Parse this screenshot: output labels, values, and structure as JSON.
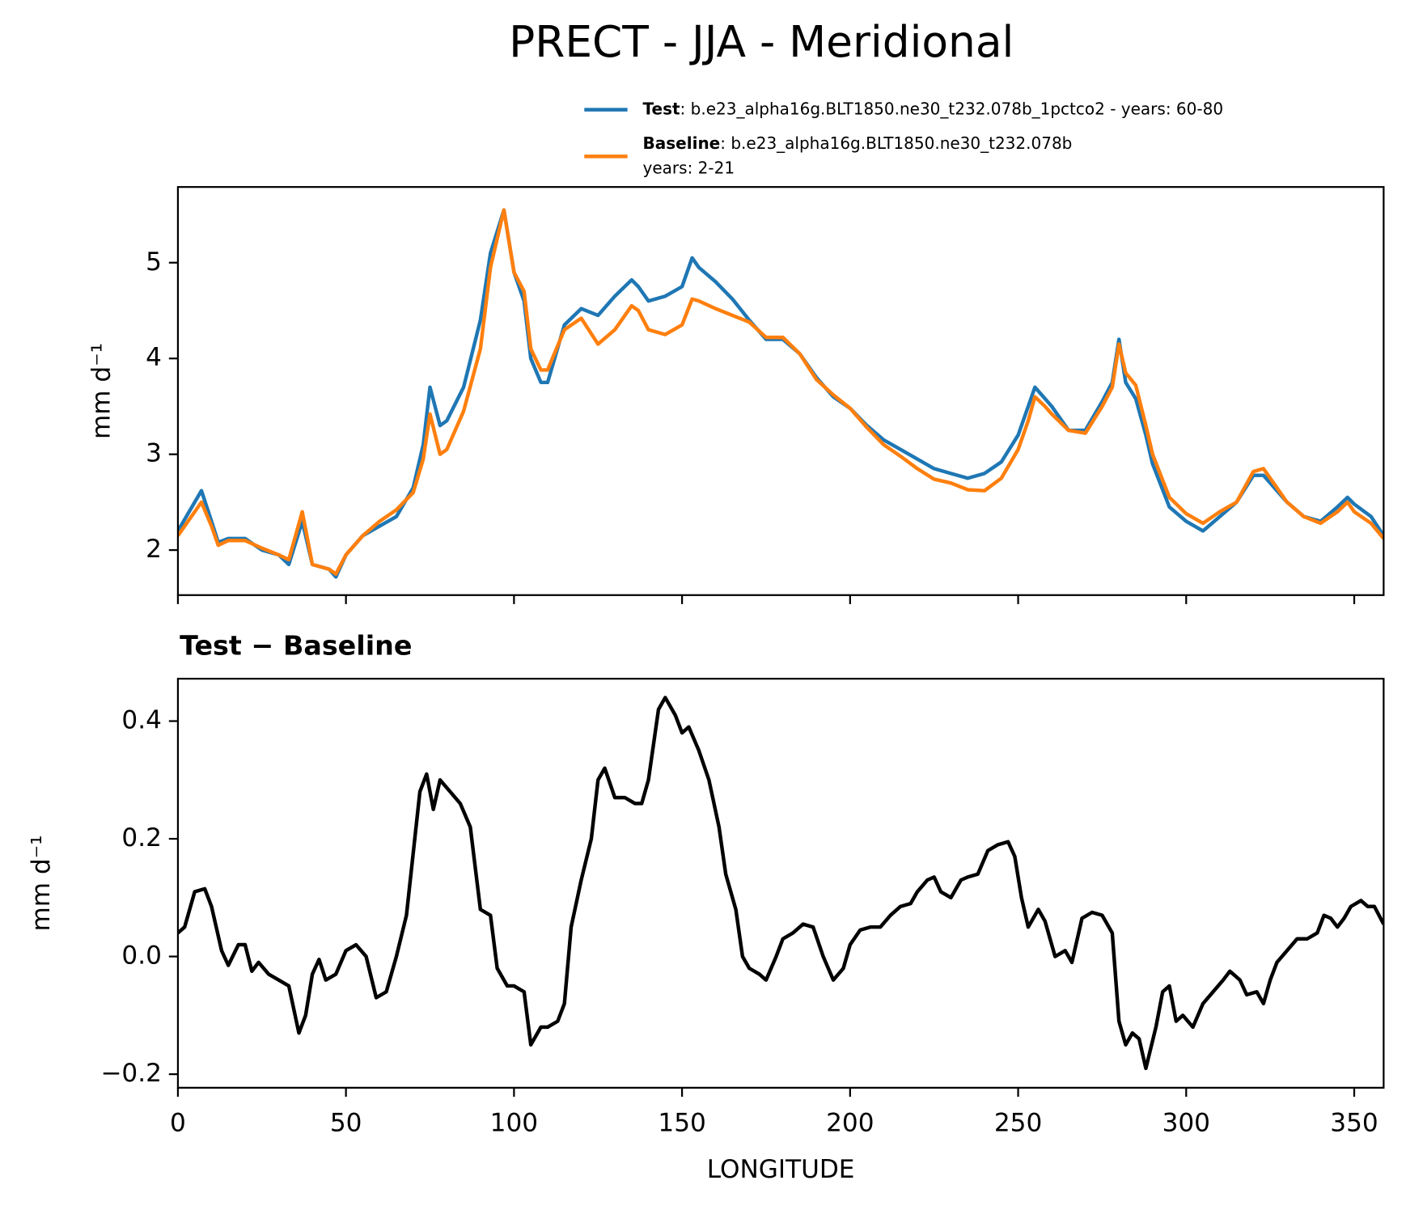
{
  "chart_data": [
    {
      "type": "line",
      "title": "PRECT - JJA - Meridional",
      "ylabel": "mm d⁻¹",
      "x": [
        0,
        5,
        7,
        10,
        12,
        15,
        20,
        25,
        30,
        33,
        37,
        40,
        45,
        47,
        50,
        55,
        60,
        65,
        70,
        73,
        75,
        78,
        80,
        85,
        90,
        93,
        97,
        100,
        103,
        105,
        108,
        110,
        115,
        120,
        125,
        130,
        135,
        137,
        140,
        145,
        150,
        153,
        155,
        160,
        165,
        170,
        175,
        180,
        185,
        190,
        195,
        200,
        205,
        210,
        215,
        220,
        225,
        230,
        235,
        240,
        245,
        250,
        253,
        255,
        258,
        260,
        265,
        270,
        275,
        278,
        280,
        282,
        285,
        288,
        290,
        295,
        300,
        305,
        310,
        315,
        320,
        323,
        325,
        330,
        335,
        340,
        345,
        348,
        350,
        355,
        358.75
      ],
      "series": [
        {
          "name": "Test",
          "description": [
            ": b.e23_alpha16g.BLT1850.ne30_t232.078b_1pctco2 - years: 60-80"
          ],
          "color": "#1f77b4",
          "values": [
            2.2,
            2.5,
            2.62,
            2.3,
            2.08,
            2.12,
            2.12,
            2.0,
            1.95,
            1.85,
            2.3,
            1.85,
            1.8,
            1.72,
            1.95,
            2.15,
            2.25,
            2.35,
            2.65,
            3.1,
            3.7,
            3.3,
            3.35,
            3.7,
            4.4,
            5.1,
            5.55,
            4.9,
            4.6,
            4.0,
            3.75,
            3.75,
            4.35,
            4.52,
            4.45,
            4.65,
            4.82,
            4.75,
            4.6,
            4.65,
            4.75,
            5.05,
            4.95,
            4.8,
            4.62,
            4.4,
            4.2,
            4.2,
            4.05,
            3.8,
            3.6,
            3.48,
            3.3,
            3.15,
            3.05,
            2.95,
            2.85,
            2.8,
            2.75,
            2.8,
            2.92,
            3.2,
            3.5,
            3.7,
            3.58,
            3.5,
            3.25,
            3.25,
            3.55,
            3.75,
            4.2,
            3.75,
            3.58,
            3.2,
            2.9,
            2.45,
            2.3,
            2.2,
            2.35,
            2.5,
            2.78,
            2.78,
            2.7,
            2.5,
            2.35,
            2.3,
            2.45,
            2.55,
            2.48,
            2.35,
            2.15
          ]
        },
        {
          "name": "Baseline",
          "description": [
            ": b.e23_alpha16g.BLT1850.ne30_t232.078b",
            "years: 2-21"
          ],
          "color": "#ff7f0e",
          "values": [
            2.15,
            2.4,
            2.5,
            2.25,
            2.05,
            2.1,
            2.1,
            2.02,
            1.95,
            1.9,
            2.4,
            1.85,
            1.8,
            1.75,
            1.95,
            2.15,
            2.3,
            2.42,
            2.6,
            2.95,
            3.42,
            3.0,
            3.05,
            3.45,
            4.1,
            4.95,
            5.55,
            4.9,
            4.7,
            4.1,
            3.88,
            3.88,
            4.3,
            4.42,
            4.15,
            4.3,
            4.55,
            4.5,
            4.3,
            4.25,
            4.35,
            4.62,
            4.6,
            4.52,
            4.45,
            4.38,
            4.22,
            4.22,
            4.05,
            3.78,
            3.62,
            3.48,
            3.28,
            3.1,
            2.98,
            2.85,
            2.74,
            2.7,
            2.63,
            2.62,
            2.75,
            3.05,
            3.35,
            3.6,
            3.5,
            3.42,
            3.25,
            3.22,
            3.5,
            3.7,
            4.15,
            3.85,
            3.72,
            3.3,
            3.0,
            2.55,
            2.38,
            2.28,
            2.4,
            2.5,
            2.82,
            2.85,
            2.75,
            2.5,
            2.35,
            2.28,
            2.4,
            2.5,
            2.4,
            2.28,
            2.12
          ]
        }
      ],
      "xlim": [
        0,
        358.75
      ],
      "xticks": [
        0,
        50,
        100,
        150,
        200,
        250,
        300,
        350
      ],
      "ylim": [
        1.53,
        5.79
      ],
      "yticks": [
        2,
        3,
        4,
        5
      ]
    },
    {
      "type": "line",
      "title": "Test − Baseline",
      "xlabel": "LONGITUDE",
      "ylabel": "mm d⁻¹",
      "x": [
        0,
        2,
        5,
        8,
        10,
        13,
        15,
        18,
        20,
        22,
        24,
        27,
        30,
        33,
        36,
        38,
        40,
        42,
        44,
        47,
        50,
        53,
        56,
        59,
        62,
        65,
        68,
        72,
        74,
        76,
        78,
        81,
        84,
        87,
        90,
        93,
        95,
        98,
        100,
        103,
        105,
        108,
        110,
        113,
        115,
        117,
        120,
        123,
        125,
        127,
        130,
        133,
        136,
        138,
        140,
        143,
        145,
        148,
        150,
        152,
        155,
        158,
        161,
        163,
        166,
        168,
        170,
        173,
        175,
        178,
        180,
        183,
        186,
        189,
        192,
        195,
        198,
        200,
        203,
        206,
        209,
        212,
        215,
        218,
        220,
        223,
        225,
        227,
        230,
        233,
        235,
        238,
        241,
        244,
        247,
        249,
        251,
        253,
        256,
        258,
        261,
        264,
        266,
        269,
        272,
        275,
        278,
        280,
        282,
        284,
        286,
        288,
        291,
        293,
        295,
        297,
        299,
        302,
        305,
        308,
        311,
        313,
        316,
        318,
        321,
        323,
        325,
        327,
        330,
        333,
        336,
        339,
        341,
        343,
        345,
        347,
        349,
        352,
        354,
        356,
        358.75
      ],
      "series": [
        {
          "color": "#000000",
          "values": [
            0.04,
            0.05,
            0.11,
            0.115,
            0.085,
            0.01,
            -0.015,
            0.02,
            0.02,
            -0.025,
            -0.01,
            -0.03,
            -0.04,
            -0.05,
            -0.13,
            -0.1,
            -0.03,
            -0.005,
            -0.04,
            -0.03,
            0.01,
            0.02,
            0.0,
            -0.07,
            -0.06,
            0.0,
            0.07,
            0.28,
            0.31,
            0.25,
            0.3,
            0.28,
            0.26,
            0.22,
            0.08,
            0.07,
            -0.02,
            -0.05,
            -0.05,
            -0.06,
            -0.15,
            -0.12,
            -0.12,
            -0.11,
            -0.08,
            0.05,
            0.13,
            0.2,
            0.3,
            0.32,
            0.27,
            0.27,
            0.26,
            0.26,
            0.3,
            0.42,
            0.44,
            0.41,
            0.38,
            0.39,
            0.35,
            0.3,
            0.22,
            0.14,
            0.08,
            0.0,
            -0.02,
            -0.03,
            -0.04,
            0.0,
            0.03,
            0.04,
            0.055,
            0.05,
            0.0,
            -0.04,
            -0.02,
            0.02,
            0.045,
            0.05,
            0.05,
            0.07,
            0.085,
            0.09,
            0.11,
            0.13,
            0.135,
            0.11,
            0.1,
            0.13,
            0.135,
            0.14,
            0.18,
            0.19,
            0.195,
            0.17,
            0.1,
            0.05,
            0.08,
            0.06,
            0.0,
            0.01,
            -0.01,
            0.065,
            0.075,
            0.07,
            0.04,
            -0.11,
            -0.15,
            -0.13,
            -0.14,
            -0.19,
            -0.12,
            -0.06,
            -0.05,
            -0.11,
            -0.1,
            -0.12,
            -0.08,
            -0.06,
            -0.04,
            -0.025,
            -0.04,
            -0.065,
            -0.06,
            -0.08,
            -0.04,
            -0.01,
            0.01,
            0.03,
            0.03,
            0.04,
            0.07,
            0.065,
            0.05,
            0.065,
            0.085,
            0.095,
            0.085,
            0.085,
            0.055
          ]
        }
      ],
      "xlim": [
        0,
        358.75
      ],
      "xticks": [
        0,
        50,
        100,
        150,
        200,
        250,
        300,
        350
      ],
      "ylim": [
        -0.223,
        0.472
      ],
      "yticks": [
        {
          "value": -0.2,
          "label": "−0.2"
        },
        {
          "value": 0,
          "label": "0.0"
        },
        0.2,
        0.4
      ]
    }
  ]
}
